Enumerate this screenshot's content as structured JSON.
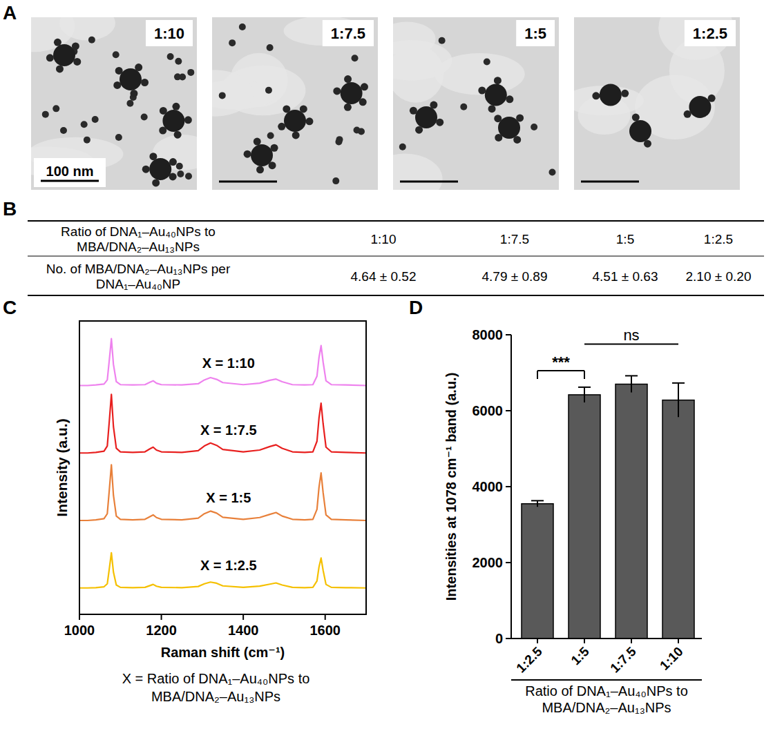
{
  "panels": [
    "A",
    "B",
    "C",
    "D"
  ],
  "images": {
    "labels": [
      "1:10",
      "1:7.5",
      "1:5",
      "1:2.5"
    ],
    "scale_bar": "100 nm"
  },
  "table": {
    "header": [
      "Ratio of DNA₁–Au₄₀NPs to MBA/DNA₂–Au₁₃NPs",
      "1:10",
      "1:7.5",
      "1:5",
      "1:2.5"
    ],
    "rows": [
      [
        "No. of MBA/DNA₂–Au₁₃NPs per DNA₁–Au₄₀NP",
        "4.64 ± 0.52",
        "4.79 ± 0.89",
        "4.51 ± 0.63",
        "2.10 ± 0.20"
      ]
    ]
  },
  "chart_data": [
    {
      "type": "line",
      "x_label": "Raman shift (cm⁻¹)",
      "y_label": "Intensity (a.u.)",
      "caption": "X = Ratio of DNA₁–Au₄₀NPs to MBA/DNA₂–Au₁₃NPs",
      "tick_labels": "x",
      "x": [
        1000,
        1020,
        1040,
        1060,
        1068,
        1073,
        1078,
        1083,
        1090,
        1100,
        1130,
        1160,
        1172,
        1180,
        1188,
        1200,
        1250,
        1290,
        1305,
        1320,
        1335,
        1350,
        1400,
        1440,
        1465,
        1480,
        1495,
        1520,
        1550,
        1570,
        1580,
        1585,
        1590,
        1595,
        1602,
        1615,
        1650,
        1700
      ],
      "xlim": [
        1000,
        1700
      ],
      "xticks": [
        1000,
        1200,
        1400,
        1600
      ],
      "ylim": [
        0,
        100
      ],
      "series": [
        {
          "name": "X = 1:10",
          "color": "#ee82ee",
          "values": [
            78,
            78,
            78.2,
            78.5,
            79.9,
            86.8,
            94,
            85.2,
            79.3,
            78.3,
            78.2,
            78.3,
            79.1,
            79.6,
            78.8,
            78.3,
            78.2,
            78.6,
            79.9,
            80.7,
            80.1,
            79,
            78.3,
            78.8,
            79.8,
            80.2,
            79.3,
            78.3,
            78.2,
            78.3,
            81.2,
            87.6,
            91.6,
            86,
            79.6,
            78.3,
            78.2,
            78
          ]
        },
        {
          "name": "X = 1:7.5",
          "color": "#e8201f",
          "values": [
            55,
            55,
            55.2,
            55.6,
            57.4,
            66,
            75,
            64,
            56.6,
            55.4,
            55.2,
            55.4,
            56.4,
            57,
            56,
            55.4,
            55.2,
            55.8,
            57.4,
            58.4,
            57.6,
            56.2,
            55.4,
            56,
            57.2,
            57.8,
            56.6,
            55.4,
            55.2,
            55.4,
            59,
            67,
            72,
            65,
            57,
            55.4,
            55.2,
            55
          ]
        },
        {
          "name": "X = 1:5",
          "color": "#e8803a",
          "values": [
            32,
            32,
            32.2,
            32.6,
            34.3,
            42.5,
            51,
            40.6,
            33.5,
            32.4,
            32.2,
            32.4,
            33.3,
            33.9,
            33,
            32.4,
            32.2,
            32.8,
            34.3,
            35.2,
            34.5,
            33.1,
            32.4,
            33,
            34.1,
            34.7,
            33.5,
            32.4,
            32.2,
            32.4,
            35.8,
            43.4,
            48.2,
            41.5,
            33.9,
            32.4,
            32.2,
            32
          ]
        },
        {
          "name": "X = 1:2.5",
          "color": "#f5c000",
          "values": [
            9,
            9,
            9.1,
            9.4,
            10.4,
            15.6,
            21,
            14.4,
            10,
            9.2,
            9.1,
            9.2,
            9.8,
            10.2,
            9.6,
            9.2,
            9.1,
            9.5,
            10.4,
            11,
            10.6,
            9.7,
            9.2,
            9.6,
            10.3,
            10.7,
            10,
            9.2,
            9.1,
            9.2,
            11.4,
            16.2,
            19.2,
            15,
            10.2,
            9.2,
            9.1,
            9
          ]
        }
      ]
    },
    {
      "type": "bar",
      "y_label": "Intensities at 1078 cm⁻¹ band (a.u.)",
      "x_label": "Ratio of DNA₁–Au₄₀NPs to MBA/DNA₂–Au₁₃NPs",
      "categories": [
        "1:2.5",
        "1:5",
        "1:7.5",
        "1:10"
      ],
      "values": [
        3550,
        6420,
        6700,
        6280
      ],
      "errors": [
        80,
        200,
        220,
        450
      ],
      "color": "#595959",
      "ylim": [
        0,
        8000
      ],
      "yticks": [
        0,
        2000,
        4000,
        6000,
        8000
      ],
      "annotations": [
        {
          "text": "***",
          "from": "1:2.5",
          "to": "1:5"
        },
        {
          "text": "ns",
          "from": "1:5",
          "to": "1:10"
        }
      ]
    }
  ]
}
